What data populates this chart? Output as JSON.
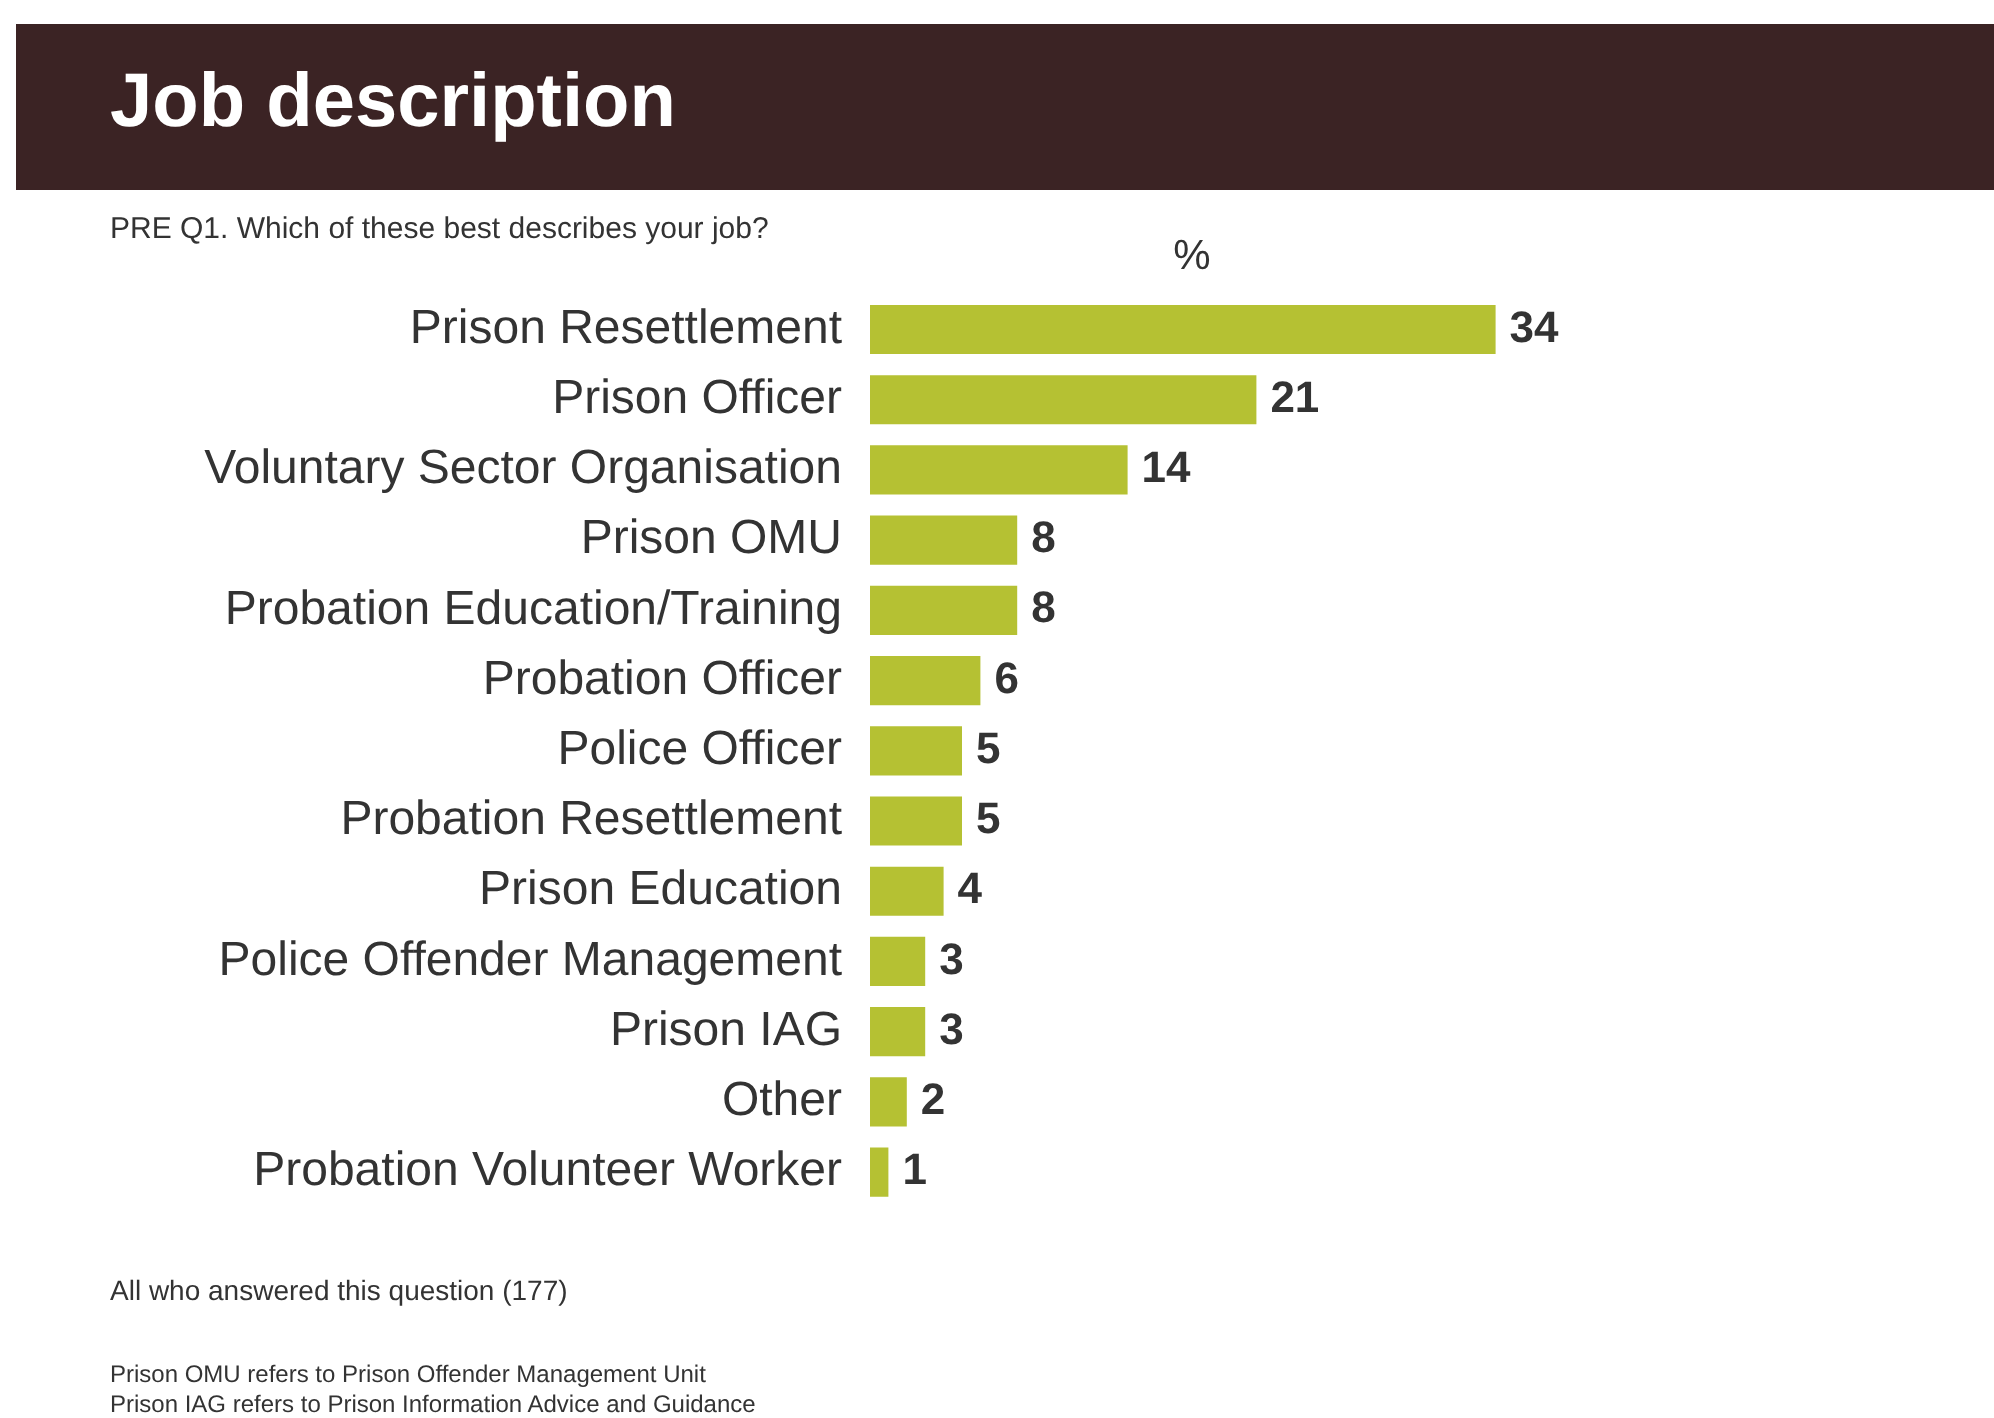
{
  "chart_data": {
    "type": "bar",
    "orientation": "horizontal",
    "title": "Job description",
    "subtitle": "PRE Q1. Which of these best describes your job?",
    "xlabel": "%",
    "categories": [
      "Prison Resettlement",
      "Prison Officer",
      "Voluntary Sector Organisation",
      "Prison OMU",
      "Probation Education/Training",
      "Probation Officer",
      "Police Officer",
      "Probation Resettlement",
      "Prison Education",
      "Police Offender Management",
      "Prison IAG",
      "Other",
      "Probation Volunteer Worker"
    ],
    "values": [
      34,
      21,
      14,
      8,
      8,
      6,
      5,
      5,
      4,
      3,
      3,
      2,
      1
    ],
    "color": "#b5c133",
    "data_labels": true,
    "tick_labels": "y",
    "grid": false,
    "legend": false,
    "annotations": [
      "All who answered this question (177)",
      "Prison OMU refers to Prison Offender Management Unit",
      "Prison IAG refers to Prison Information Advice and Guidance"
    ]
  }
}
